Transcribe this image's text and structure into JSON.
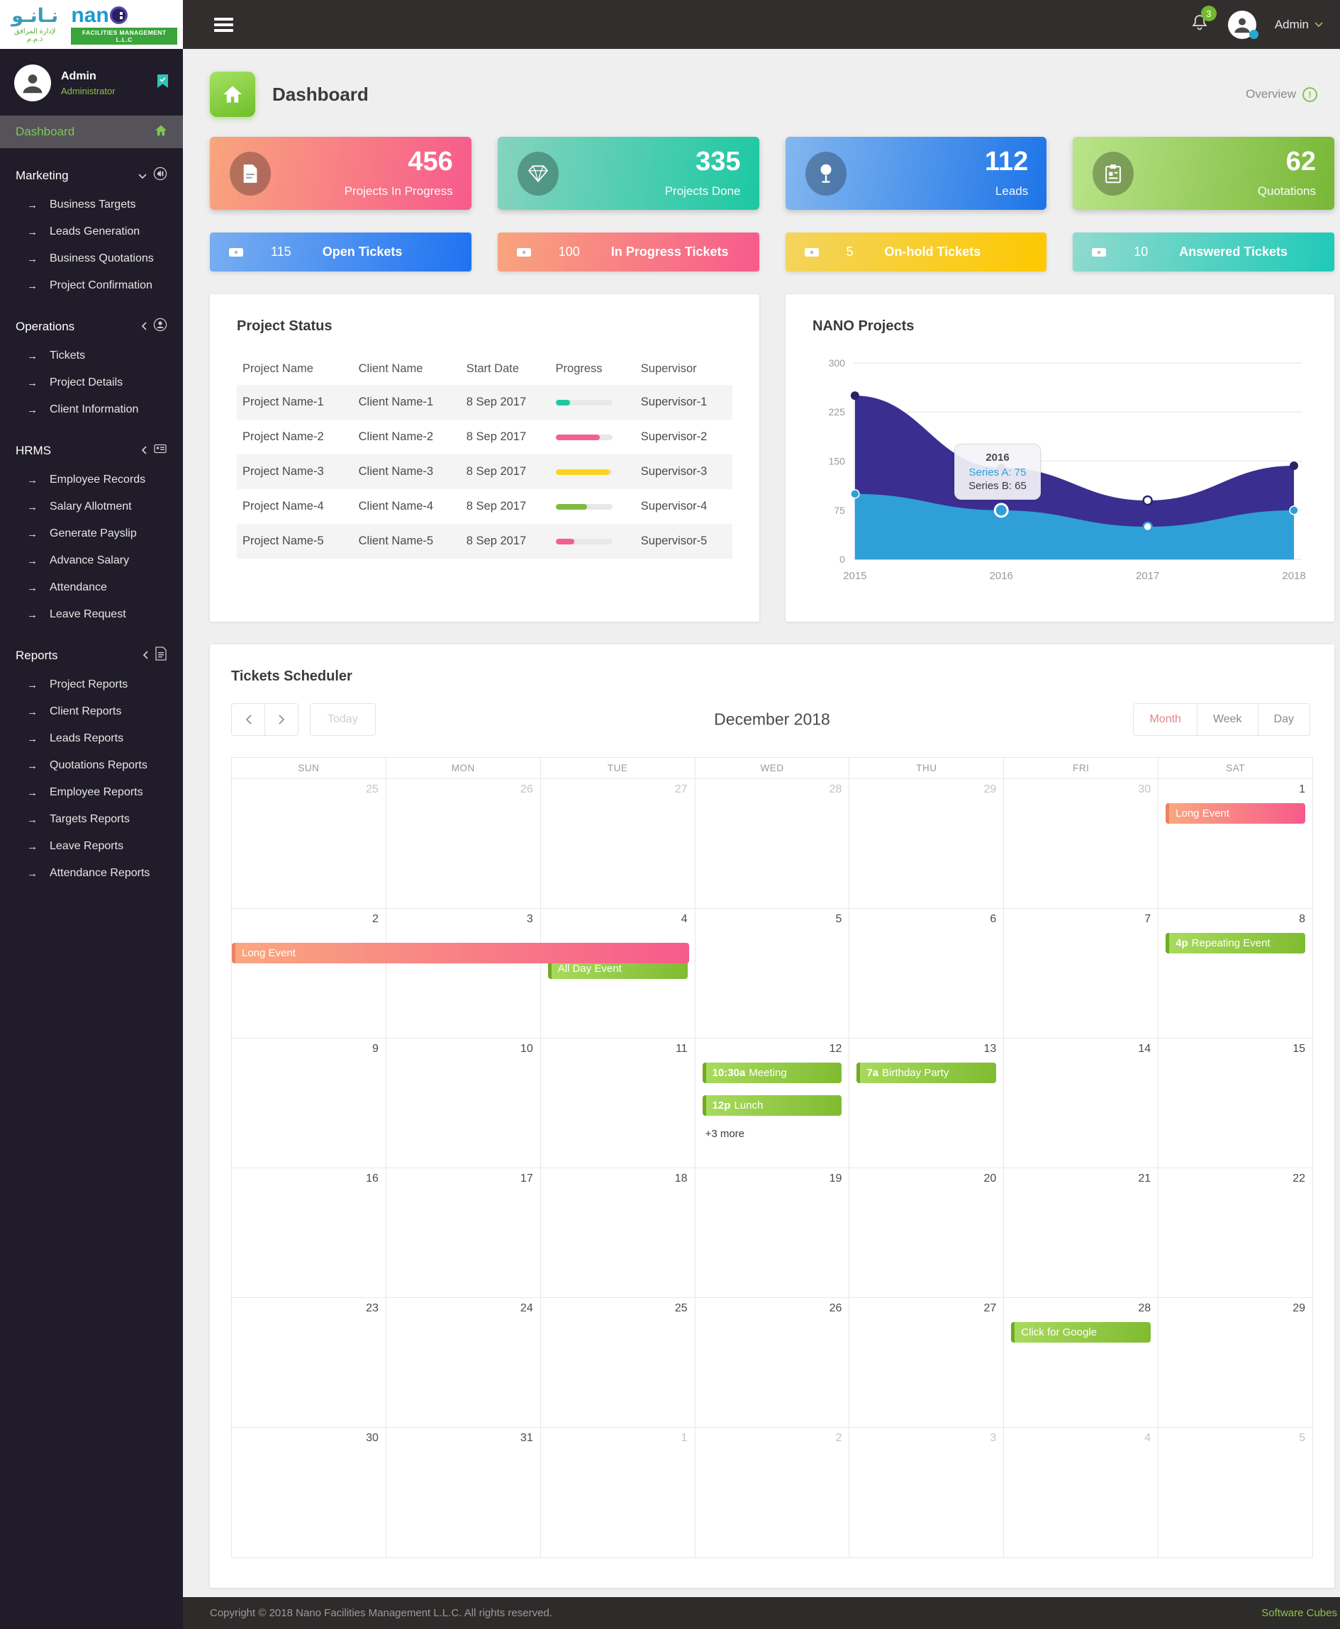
{
  "header": {
    "brand": {
      "arabic": "نـانـو",
      "arabic_tagline": "لإدارة المرافق ذ.م.م",
      "latin": "nan",
      "badge": "FACILITIES MANAGEMENT L.L.C"
    },
    "notifications_count": "3",
    "user_name": "Admin"
  },
  "sidebar": {
    "profile": {
      "name": "Admin",
      "role": "Administrator"
    },
    "dashboard_label": "Dashboard",
    "sections": [
      {
        "label": "Marketing",
        "chevron": "down",
        "icon": "megaphone-icon",
        "items": [
          "Business Targets",
          "Leads Generation",
          "Business Quotations",
          "Project Confirmation"
        ]
      },
      {
        "label": "Operations",
        "chevron": "left",
        "icon": "support-icon",
        "items": [
          "Tickets",
          "Project Details",
          "Client Information"
        ]
      },
      {
        "label": "HRMS",
        "chevron": "left",
        "icon": "id-card-icon",
        "items": [
          "Employee Records",
          "Salary Allotment",
          "Generate Payslip",
          "Advance Salary",
          "Attendance",
          "Leave Request"
        ]
      },
      {
        "label": "Reports",
        "chevron": "left",
        "icon": "report-icon",
        "items": [
          "Project Reports",
          "Client Reports",
          "Leads Reports",
          "Quotations Reports",
          "Employee Reports",
          "Targets Reports",
          "Leave Reports",
          "Attendance Reports"
        ]
      }
    ]
  },
  "page": {
    "title": "Dashboard",
    "overview_label": "Overview"
  },
  "stat_cards": [
    {
      "value": "456",
      "label": "Projects In Progress",
      "icon": "document-icon",
      "from": "#f8a57d",
      "to": "#f75a8c"
    },
    {
      "value": "335",
      "label": "Projects Done",
      "icon": "diamond-icon",
      "from": "#86d3c0",
      "to": "#1cc8a3"
    },
    {
      "value": "112",
      "label": "Leads",
      "icon": "leads-pin-icon",
      "from": "#83b7ef",
      "to": "#1d74e8"
    },
    {
      "value": "62",
      "label": "Quotations",
      "icon": "clipboard-icon",
      "from": "#bae48a",
      "to": "#78b737"
    }
  ],
  "ticket_cards": [
    {
      "count": "115",
      "label": "Open Tickets",
      "from": "#79aef1",
      "to": "#1f72f1"
    },
    {
      "count": "100",
      "label": "In Progress Tickets",
      "from": "#f8a57d",
      "to": "#f75a8c"
    },
    {
      "count": "5",
      "label": "On-hold Tickets",
      "from": "#f3d45e",
      "to": "#fdc800"
    },
    {
      "count": "10",
      "label": "Answered Tickets",
      "from": "#90dacf",
      "to": "#1fc9b7"
    }
  ],
  "project_status": {
    "title": "Project Status",
    "columns": [
      "Project Name",
      "Client Name",
      "Start Date",
      "Progress",
      "Supervisor"
    ],
    "rows": [
      {
        "project": "Project Name-1",
        "client": "Client Name-1",
        "start": "8 Sep 2017",
        "progress": 25,
        "progress_color": "#1fc8a3",
        "supervisor": "Supervisor-1"
      },
      {
        "project": "Project Name-2",
        "client": "Client Name-2",
        "start": "8 Sep 2017",
        "progress": 78,
        "progress_color": "#f2608d",
        "supervisor": "Supervisor-2"
      },
      {
        "project": "Project Name-3",
        "client": "Client Name-3",
        "start": "8 Sep 2017",
        "progress": 95,
        "progress_color": "#fdd41c",
        "supervisor": "Supervisor-3"
      },
      {
        "project": "Project Name-4",
        "client": "Client Name-4",
        "start": "8 Sep 2017",
        "progress": 55,
        "progress_color": "#7cbb3f",
        "supervisor": "Supervisor-4"
      },
      {
        "project": "Project Name-5",
        "client": "Client Name-5",
        "start": "8 Sep 2017",
        "progress": 33,
        "progress_color": "#f2608d",
        "supervisor": "Supervisor-5"
      }
    ]
  },
  "chart_data": {
    "type": "area",
    "stacked": true,
    "title": "NANO Projects",
    "x": [
      "2015",
      "2016",
      "2017",
      "2018"
    ],
    "series": [
      {
        "name": "Series A",
        "values": [
          100,
          75,
          50,
          75
        ],
        "color": "#2f9fd8"
      },
      {
        "name": "Series B",
        "values": [
          150,
          65,
          40,
          68
        ],
        "color": "#3b2e91"
      }
    ],
    "ylim": [
      0,
      300
    ],
    "yticks": [
      0,
      75,
      150,
      225,
      300
    ],
    "grid": true,
    "legend_position": "none",
    "tooltip": {
      "title": "2016",
      "entries": [
        {
          "label": "Series A",
          "value": "75"
        },
        {
          "label": "Series B",
          "value": "65"
        }
      ]
    }
  },
  "scheduler": {
    "title": "Tickets Scheduler",
    "today_label": "Today",
    "month_title": "December 2018",
    "views": [
      "Month",
      "Week",
      "Day"
    ],
    "active_view": "Month",
    "day_headers": [
      "SUN",
      "MON",
      "TUE",
      "WED",
      "THU",
      "FRI",
      "SAT"
    ],
    "weeks": [
      {
        "days": [
          {
            "d": "25",
            "m": true
          },
          {
            "d": "26",
            "m": true
          },
          {
            "d": "27",
            "m": true
          },
          {
            "d": "28",
            "m": true
          },
          {
            "d": "29",
            "m": true
          },
          {
            "d": "30",
            "m": true
          },
          {
            "d": "1",
            "ev": [
              {
                "t": "Long Event",
                "c": "pink"
              }
            ]
          }
        ]
      },
      {
        "span": {
          "t": "Long Event",
          "c": "pink",
          "cols": 3
        },
        "days": [
          {
            "d": "2"
          },
          {
            "d": "3"
          },
          {
            "d": "4",
            "ev": [
              {
                "t": "All Day Event",
                "c": "green",
                "push": true
              }
            ]
          },
          {
            "d": "5"
          },
          {
            "d": "6"
          },
          {
            "d": "7"
          },
          {
            "d": "8",
            "ev": [
              {
                "time": "4p",
                "t": "Repeating Event",
                "c": "green"
              }
            ]
          }
        ]
      },
      {
        "days": [
          {
            "d": "9"
          },
          {
            "d": "10"
          },
          {
            "d": "11"
          },
          {
            "d": "12",
            "ev": [
              {
                "time": "10:30a",
                "t": "Meeting",
                "c": "green"
              },
              {
                "time": "12p",
                "t": "Lunch",
                "c": "green"
              }
            ],
            "more": "+3 more"
          },
          {
            "d": "13",
            "ev": [
              {
                "time": "7a",
                "t": "Birthday Party",
                "c": "green"
              }
            ]
          },
          {
            "d": "14"
          },
          {
            "d": "15"
          }
        ]
      },
      {
        "days": [
          {
            "d": "16"
          },
          {
            "d": "17"
          },
          {
            "d": "18"
          },
          {
            "d": "19"
          },
          {
            "d": "20"
          },
          {
            "d": "21"
          },
          {
            "d": "22"
          }
        ]
      },
      {
        "days": [
          {
            "d": "23"
          },
          {
            "d": "24"
          },
          {
            "d": "25"
          },
          {
            "d": "26"
          },
          {
            "d": "27"
          },
          {
            "d": "28",
            "ev": [
              {
                "t": "Click for Google",
                "c": "green"
              }
            ]
          },
          {
            "d": "29"
          }
        ]
      },
      {
        "days": [
          {
            "d": "30"
          },
          {
            "d": "31"
          },
          {
            "d": "1",
            "m": true
          },
          {
            "d": "2",
            "m": true
          },
          {
            "d": "3",
            "m": true
          },
          {
            "d": "4",
            "m": true
          },
          {
            "d": "5",
            "m": true
          }
        ]
      }
    ]
  },
  "footer": {
    "copyright": "Copyright © 2018 Nano Facilities Management L.L.C. All rights reserved.",
    "credit": "Software Cubes"
  }
}
